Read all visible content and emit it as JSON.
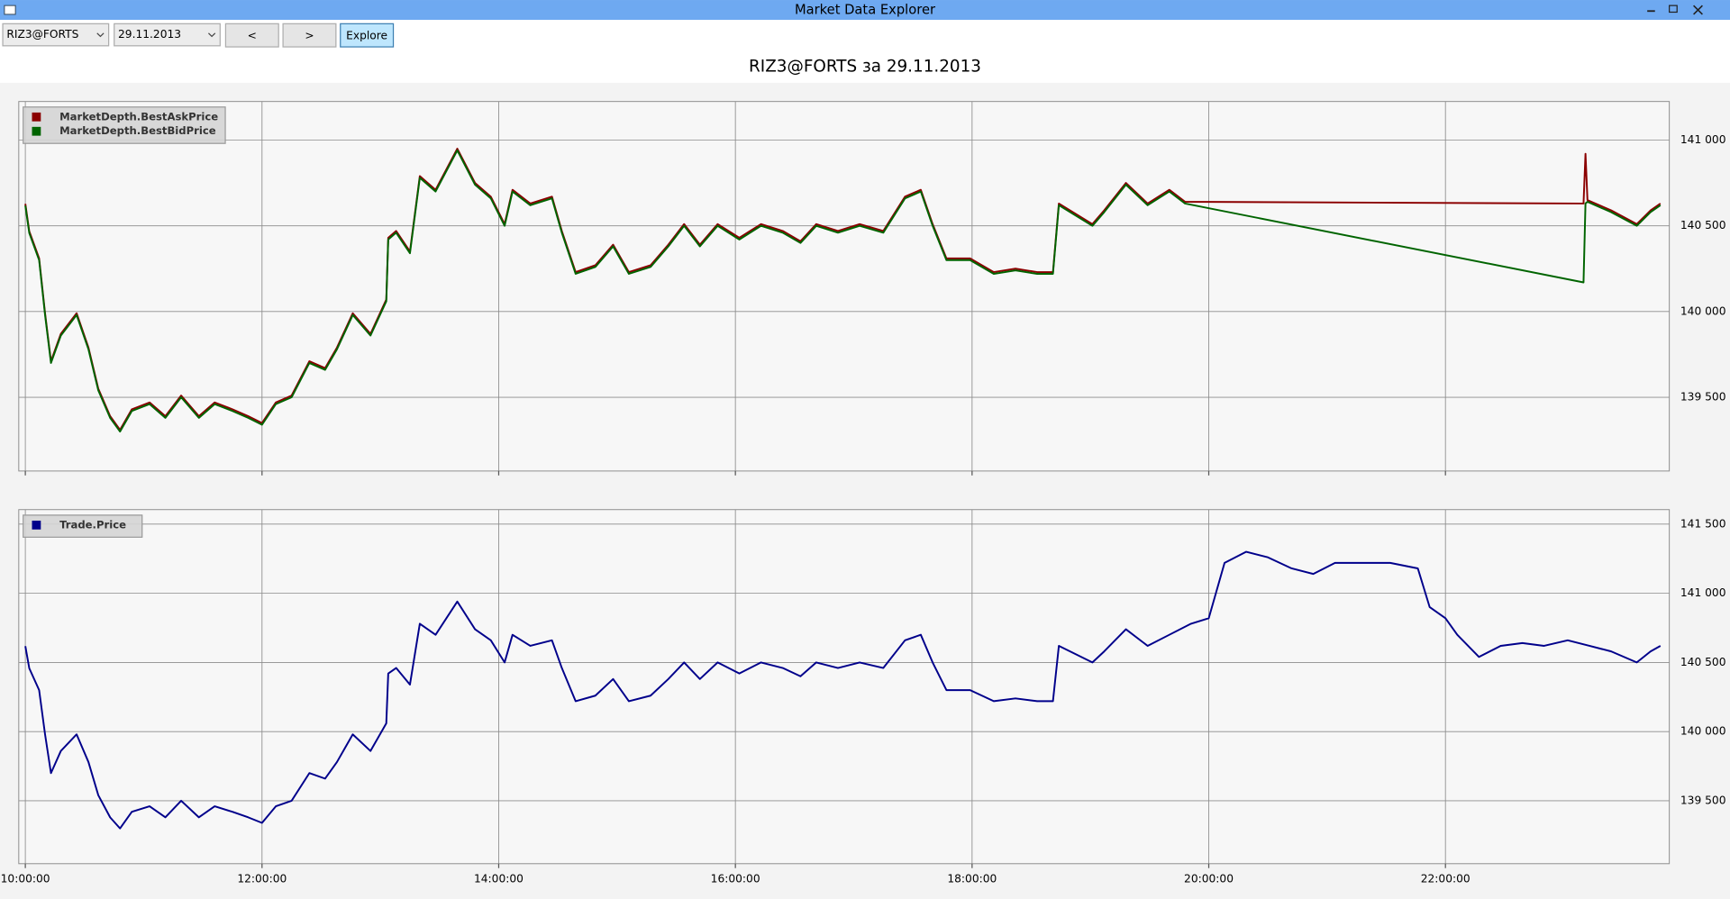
{
  "window": {
    "title": "Market Data Explorer"
  },
  "toolbar": {
    "symbol": "RIZ3@FORTS",
    "date": "29.11.2013",
    "prev": "<",
    "next": ">",
    "explore": "Explore"
  },
  "header": {
    "title": "RIZ3@FORTS за 29.11.2013"
  },
  "chart_data": [
    {
      "type": "line",
      "legend": "upper left",
      "grid": true,
      "x": [
        "10:00:00",
        "10:02:00",
        "10:07:00",
        "10:10:00",
        "10:13:00",
        "10:18:00",
        "10:26:00",
        "10:32:00",
        "10:37:00",
        "10:43:00",
        "10:48:00",
        "10:54:00",
        "11:03:00",
        "11:11:00",
        "11:19:00",
        "11:28:00",
        "11:36:00",
        "11:45:00",
        "11:53:00",
        "12:00:00",
        "12:07:00",
        "12:15:00",
        "12:24:00",
        "12:32:00",
        "12:38:00",
        "12:46:00",
        "12:55:00",
        "13:03:00",
        "13:04:00",
        "13:08:00",
        "13:15:00",
        "13:20:00",
        "13:28:00",
        "13:39:00",
        "13:48:00",
        "13:56:00",
        "14:03:00",
        "14:07:00",
        "14:16:00",
        "14:27:00",
        "14:32:00",
        "14:39:00",
        "14:49:00",
        "14:58:00",
        "15:06:00",
        "15:17:00",
        "15:26:00",
        "15:34:00",
        "15:42:00",
        "15:51:00",
        "16:02:00",
        "16:13:00",
        "16:24:00",
        "16:33:00",
        "16:41:00",
        "16:52:00",
        "17:03:00",
        "17:15:00",
        "17:26:00",
        "17:34:00",
        "17:40:00",
        "17:47:00",
        "17:59:00",
        "18:11:00",
        "18:22:00",
        "18:33:00",
        "18:41:00",
        "18:44:00",
        "19:01:00",
        "19:07:00",
        "19:18:00",
        "19:29:00",
        "19:40:00",
        "19:48:00",
        "23:10:00",
        "23:11:00",
        "23:12:00",
        "23:24:00",
        "23:37:00",
        "23:44:00",
        "23:49:00"
      ],
      "series": [
        {
          "name": "MarketDepth.BestAskPrice",
          "color": "#8b0000",
          "values": [
            140628,
            140468,
            140310,
            139990,
            139710,
            139870,
            139990,
            139790,
            139550,
            139390,
            139310,
            139430,
            139470,
            139390,
            139510,
            139390,
            139470,
            139430,
            139390,
            139350,
            139470,
            139510,
            139710,
            139670,
            139790,
            139990,
            139870,
            140070,
            140430,
            140470,
            140350,
            140790,
            140710,
            140950,
            140750,
            140670,
            140510,
            140710,
            140630,
            140670,
            140470,
            140230,
            140270,
            140390,
            140230,
            140270,
            140390,
            140510,
            140390,
            140510,
            140430,
            140510,
            140470,
            140410,
            140510,
            140470,
            140510,
            140470,
            140670,
            140710,
            140510,
            140310,
            140310,
            140230,
            140250,
            140230,
            140230,
            140630,
            140510,
            140590,
            140750,
            140630,
            140710,
            140640,
            140630,
            140920,
            140650,
            140590,
            140510,
            140590,
            140630
          ]
        },
        {
          "name": "MarketDepth.BestBidPrice",
          "color": "#006400",
          "values": [
            140618,
            140458,
            140300,
            139980,
            139700,
            139860,
            139980,
            139780,
            139540,
            139380,
            139300,
            139420,
            139460,
            139380,
            139500,
            139380,
            139460,
            139420,
            139380,
            139340,
            139460,
            139500,
            139700,
            139660,
            139780,
            139980,
            139860,
            140060,
            140420,
            140460,
            140340,
            140780,
            140700,
            140940,
            140740,
            140660,
            140500,
            140700,
            140620,
            140660,
            140460,
            140220,
            140260,
            140380,
            140220,
            140260,
            140380,
            140500,
            140380,
            140500,
            140420,
            140500,
            140460,
            140400,
            140500,
            140460,
            140500,
            140460,
            140660,
            140700,
            140500,
            140300,
            140300,
            140220,
            140240,
            140220,
            140220,
            140620,
            140500,
            140580,
            140740,
            140620,
            140700,
            140630,
            140170,
            140630,
            140640,
            140580,
            140500,
            140580,
            140620
          ]
        }
      ],
      "xlim": [
        "09:56:40",
        "23:53:30"
      ],
      "ylim": [
        139070,
        141225
      ],
      "yticks": [
        {
          "value": 139500,
          "label": "139 500"
        },
        {
          "value": 140000,
          "label": "140 000"
        },
        {
          "value": 140500,
          "label": "140 500"
        },
        {
          "value": 141000,
          "label": "141 000"
        }
      ]
    },
    {
      "type": "line",
      "legend": "upper left",
      "grid": true,
      "x": [
        "10:00:00",
        "10:02:00",
        "10:07:00",
        "10:10:00",
        "10:13:00",
        "10:18:00",
        "10:26:00",
        "10:32:00",
        "10:37:00",
        "10:43:00",
        "10:48:00",
        "10:54:00",
        "11:03:00",
        "11:11:00",
        "11:19:00",
        "11:28:00",
        "11:36:00",
        "11:45:00",
        "11:53:00",
        "12:00:00",
        "12:07:00",
        "12:15:00",
        "12:24:00",
        "12:32:00",
        "12:38:00",
        "12:46:00",
        "12:55:00",
        "13:03:00",
        "13:04:00",
        "13:08:00",
        "13:15:00",
        "13:20:00",
        "13:28:00",
        "13:39:00",
        "13:48:00",
        "13:56:00",
        "14:03:00",
        "14:07:00",
        "14:16:00",
        "14:27:00",
        "14:32:00",
        "14:39:00",
        "14:49:00",
        "14:58:00",
        "15:06:00",
        "15:17:00",
        "15:26:00",
        "15:34:00",
        "15:42:00",
        "15:51:00",
        "16:02:00",
        "16:13:00",
        "16:24:00",
        "16:33:00",
        "16:41:00",
        "16:52:00",
        "17:03:00",
        "17:15:00",
        "17:26:00",
        "17:34:00",
        "17:40:00",
        "17:47:00",
        "17:59:00",
        "18:11:00",
        "18:22:00",
        "18:33:00",
        "18:41:00",
        "18:44:00",
        "19:01:00",
        "19:07:00",
        "19:18:00",
        "19:29:00",
        "19:40:00",
        "19:51:00",
        "20:00:00",
        "20:08:00",
        "20:19:00",
        "20:30:00",
        "20:42:00",
        "20:53:00",
        "21:04:00",
        "21:15:00",
        "21:32:00",
        "21:46:00",
        "21:52:00",
        "22:00:00",
        "22:06:00",
        "22:17:00",
        "22:28:00",
        "22:39:00",
        "22:50:00",
        "23:02:00",
        "23:13:00",
        "23:24:00",
        "23:37:00",
        "23:44:00",
        "23:49:00"
      ],
      "series": [
        {
          "name": "Trade.Price",
          "color": "#00008b",
          "values": [
            140618,
            140458,
            140300,
            139980,
            139700,
            139860,
            139980,
            139780,
            139540,
            139380,
            139300,
            139420,
            139460,
            139380,
            139500,
            139380,
            139460,
            139420,
            139380,
            139340,
            139460,
            139500,
            139700,
            139660,
            139780,
            139980,
            139860,
            140060,
            140420,
            140460,
            140340,
            140780,
            140700,
            140940,
            140740,
            140660,
            140500,
            140700,
            140620,
            140660,
            140460,
            140220,
            140260,
            140380,
            140220,
            140260,
            140380,
            140500,
            140380,
            140500,
            140420,
            140500,
            140460,
            140400,
            140500,
            140460,
            140500,
            140460,
            140660,
            140700,
            140500,
            140300,
            140300,
            140220,
            140240,
            140220,
            140220,
            140620,
            140500,
            140580,
            140740,
            140620,
            140700,
            140780,
            140820,
            141220,
            141300,
            141260,
            141180,
            141140,
            141220,
            141220,
            141220,
            141180,
            140900,
            140820,
            140700,
            140540,
            140620,
            140640,
            140620,
            140660,
            140620,
            140580,
            140500,
            140580,
            140620
          ]
        }
      ],
      "xlim": [
        "09:56:40",
        "23:53:30"
      ],
      "ylim": [
        139045,
        141605
      ],
      "xticks": [
        "10:00:00",
        "12:00:00",
        "14:00:00",
        "16:00:00",
        "18:00:00",
        "20:00:00",
        "22:00:00"
      ],
      "yticks": [
        {
          "value": 139500,
          "label": "139 500"
        },
        {
          "value": 140000,
          "label": "140 000"
        },
        {
          "value": 140500,
          "label": "140 500"
        },
        {
          "value": 141000,
          "label": "141 000"
        },
        {
          "value": 141500,
          "label": "141 500"
        }
      ]
    }
  ]
}
